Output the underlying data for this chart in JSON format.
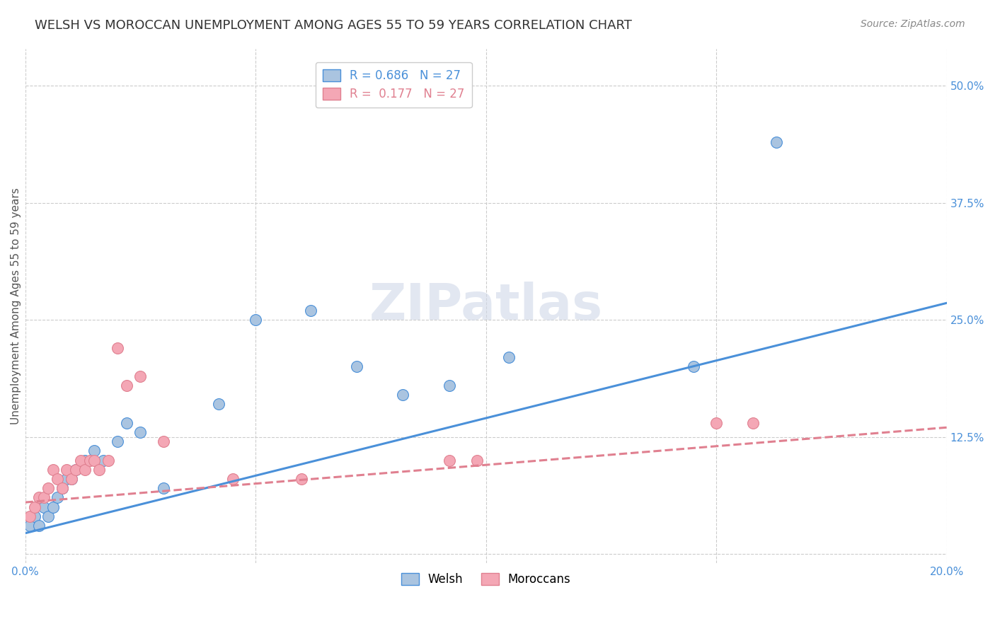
{
  "title": "WELSH VS MOROCCAN UNEMPLOYMENT AMONG AGES 55 TO 59 YEARS CORRELATION CHART",
  "source": "Source: ZipAtlas.com",
  "ylabel": "Unemployment Among Ages 55 to 59 years",
  "xlim": [
    0.0,
    0.2
  ],
  "ylim": [
    -0.01,
    0.54
  ],
  "xticks": [
    0.0,
    0.05,
    0.1,
    0.15,
    0.2
  ],
  "xtick_labels": [
    "0.0%",
    "",
    "",
    "",
    "20.0%"
  ],
  "yticks": [
    0.0,
    0.125,
    0.25,
    0.375,
    0.5
  ],
  "ytick_labels": [
    "",
    "12.5%",
    "25.0%",
    "37.5%",
    "50.0%"
  ],
  "background_color": "#ffffff",
  "grid_color": "#cccccc",
  "welsh_color": "#aac4e0",
  "moroccan_color": "#f4a7b5",
  "welsh_line_color": "#4a90d9",
  "moroccan_line_color": "#e08090",
  "R_welsh": 0.686,
  "N_welsh": 27,
  "R_moroccan": 0.177,
  "N_moroccan": 27,
  "welsh_scatter_x": [
    0.001,
    0.002,
    0.003,
    0.004,
    0.005,
    0.006,
    0.007,
    0.008,
    0.009,
    0.01,
    0.011,
    0.013,
    0.015,
    0.017,
    0.02,
    0.022,
    0.025,
    0.03,
    0.042,
    0.05,
    0.062,
    0.072,
    0.082,
    0.092,
    0.105,
    0.145,
    0.163
  ],
  "welsh_scatter_y": [
    0.03,
    0.04,
    0.03,
    0.05,
    0.04,
    0.05,
    0.06,
    0.07,
    0.08,
    0.08,
    0.09,
    0.1,
    0.11,
    0.1,
    0.12,
    0.14,
    0.13,
    0.07,
    0.16,
    0.25,
    0.26,
    0.2,
    0.17,
    0.18,
    0.21,
    0.2,
    0.44
  ],
  "moroccan_scatter_x": [
    0.001,
    0.002,
    0.003,
    0.004,
    0.005,
    0.006,
    0.007,
    0.008,
    0.009,
    0.01,
    0.011,
    0.012,
    0.013,
    0.014,
    0.015,
    0.016,
    0.018,
    0.02,
    0.022,
    0.025,
    0.03,
    0.045,
    0.06,
    0.092,
    0.098,
    0.15,
    0.158
  ],
  "moroccan_scatter_y": [
    0.04,
    0.05,
    0.06,
    0.06,
    0.07,
    0.09,
    0.08,
    0.07,
    0.09,
    0.08,
    0.09,
    0.1,
    0.09,
    0.1,
    0.1,
    0.09,
    0.1,
    0.22,
    0.18,
    0.19,
    0.12,
    0.08,
    0.08,
    0.1,
    0.1,
    0.14,
    0.14
  ],
  "welsh_line_x0": 0.0,
  "welsh_line_y0": 0.022,
  "welsh_line_x1": 0.2,
  "welsh_line_y1": 0.268,
  "moroccan_line_x0": 0.0,
  "moroccan_line_y0": 0.055,
  "moroccan_line_x1": 0.2,
  "moroccan_line_y1": 0.135,
  "watermark": "ZIPatlas",
  "watermark_color": "#d0d8e8",
  "title_fontsize": 13,
  "axis_label_fontsize": 11,
  "tick_fontsize": 11,
  "legend_fontsize": 12,
  "source_fontsize": 10
}
